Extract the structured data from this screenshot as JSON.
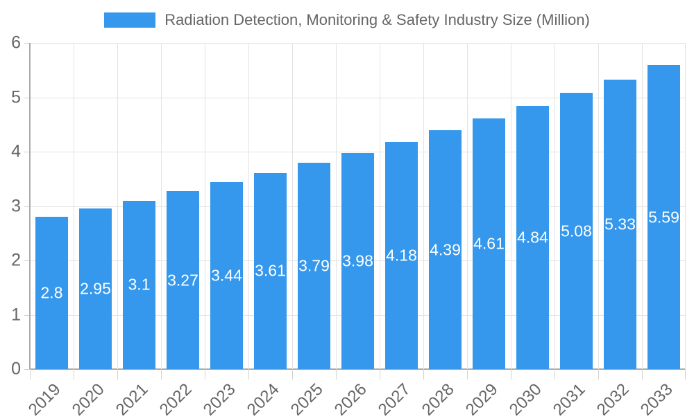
{
  "chart_data": {
    "type": "bar",
    "title": "Radiation Detection, Monitoring & Safety Industry Size (Million)",
    "series_name": "Radiation Detection, Monitoring & Safety Industry Size (Million)",
    "categories": [
      "2019",
      "2020",
      "2021",
      "2022",
      "2023",
      "2024",
      "2025",
      "2026",
      "2027",
      "2028",
      "2029",
      "2030",
      "2031",
      "2032",
      "2033"
    ],
    "values": [
      2.8,
      2.95,
      3.1,
      3.27,
      3.44,
      3.61,
      3.79,
      3.98,
      4.18,
      4.39,
      4.61,
      4.84,
      5.08,
      5.33,
      5.59
    ],
    "value_labels": [
      "2.8",
      "2.95",
      "3.1",
      "3.27",
      "3.44",
      "3.61",
      "3.79",
      "3.98",
      "4.18",
      "4.39",
      "4.61",
      "4.84",
      "5.08",
      "5.33",
      "5.59"
    ],
    "xlabel": "",
    "ylabel": "",
    "ylim": [
      0,
      6
    ],
    "yticks": [
      0,
      1,
      2,
      3,
      4,
      5,
      6
    ],
    "grid": true,
    "grid_offset_between_categories": true,
    "legend_position": "top",
    "x_tick_rotation": -45,
    "value_label_position": "center-inside-bar",
    "colors": {
      "bar": "#3598EC",
      "value_label": "#FFFFFF",
      "axis_text": "#666666",
      "grid_line": "#E3E3E3",
      "axis_line": "#ABABAB",
      "tick_mark": "#D2D2D2",
      "background": "#FFFFFF"
    }
  }
}
